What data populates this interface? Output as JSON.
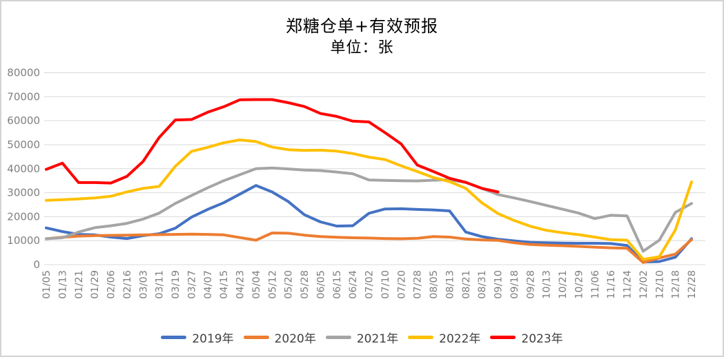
{
  "chart_data": {
    "type": "line",
    "title": "郑糖仓单+有效预报",
    "subtitle": "单位：张",
    "unit": "张",
    "grid": true,
    "legend_position": "bottom",
    "ylim": [
      0,
      80000
    ],
    "yticks": [
      0,
      10000,
      20000,
      30000,
      40000,
      50000,
      60000,
      70000,
      80000
    ],
    "categories": [
      "01/05",
      "01/13",
      "01/21",
      "01/29",
      "02/06",
      "02/16",
      "03/03",
      "03/11",
      "03/19",
      "03/27",
      "04/07",
      "04/15",
      "04/23",
      "05/04",
      "05/12",
      "05/20",
      "05/28",
      "06/05",
      "06/15",
      "06/24",
      "07/02",
      "07/10",
      "07/20",
      "07/28",
      "08/05",
      "08/13",
      "08/21",
      "08/31",
      "09/10",
      "09/18",
      "09/28",
      "10/13",
      "10/21",
      "10/29",
      "11/06",
      "11/16",
      "11/24",
      "12/02",
      "12/10",
      "12/18",
      "12/28"
    ],
    "series": [
      {
        "name": "2019年",
        "color": "#4472C4",
        "values": [
          15300,
          13800,
          12600,
          12400,
          11500,
          10900,
          12100,
          12900,
          15200,
          19800,
          23000,
          25800,
          29400,
          33000,
          30300,
          26300,
          20800,
          17800,
          16100,
          16200,
          21400,
          23200,
          23300,
          23000,
          22800,
          22400,
          13600,
          11700,
          10600,
          9900,
          9300,
          9100,
          9000,
          8900,
          8900,
          8800,
          8000,
          1100,
          1300,
          3100,
          10800
        ]
      },
      {
        "name": "2020年",
        "color": "#ED7D31",
        "values": [
          10800,
          11400,
          11900,
          12100,
          12200,
          12300,
          12400,
          12500,
          12600,
          12700,
          12600,
          12400,
          11300,
          10200,
          13200,
          13100,
          12300,
          11700,
          11400,
          11200,
          11100,
          10900,
          10800,
          11000,
          11700,
          11500,
          10700,
          10300,
          10100,
          9100,
          8400,
          8100,
          7900,
          7600,
          7300,
          7000,
          6800,
          900,
          2800,
          4400,
          10400
        ]
      },
      {
        "name": "2021年",
        "color": "#A5A5A5",
        "values": [
          10800,
          11200,
          13600,
          15400,
          16200,
          17200,
          19000,
          21500,
          25500,
          28800,
          32000,
          35000,
          37500,
          40000,
          40300,
          39900,
          39400,
          39200,
          38600,
          37900,
          35300,
          35100,
          35000,
          34900,
          35200,
          35400,
          34300,
          31800,
          29200,
          27800,
          26300,
          24700,
          23100,
          21500,
          19200,
          20600,
          20300,
          5600,
          10200,
          21800,
          25500
        ]
      },
      {
        "name": "2022年",
        "color": "#FFC000",
        "values": [
          26800,
          27100,
          27400,
          27800,
          28500,
          30300,
          31800,
          32600,
          41000,
          47200,
          48900,
          50800,
          52000,
          51300,
          49000,
          47900,
          47600,
          47700,
          47300,
          46300,
          44800,
          43800,
          41200,
          38800,
          36300,
          34600,
          31800,
          25800,
          21300,
          18400,
          16000,
          14300,
          13300,
          12500,
          11500,
          10400,
          10200,
          2200,
          3300,
          14500,
          34500
        ]
      },
      {
        "name": "2023年",
        "color": "#FF0000",
        "values": [
          39700,
          42300,
          34200,
          34200,
          34000,
          36800,
          43000,
          53000,
          60300,
          60500,
          63500,
          65800,
          68700,
          68800,
          68800,
          67500,
          65900,
          63000,
          61800,
          59800,
          59500,
          55000,
          50300,
          41500,
          38800,
          36000,
          34300,
          31800,
          30300,
          null,
          null,
          null,
          null,
          null,
          null,
          null,
          null,
          null,
          null,
          null,
          null
        ]
      }
    ],
    "colors": {
      "axis_label": "#7F7F7F",
      "gridline": "#D9D9D9",
      "title_text": "#000000",
      "legend_text": "#404040",
      "frame_border": "#D3D3D3",
      "background": "#FFFFFF"
    }
  }
}
